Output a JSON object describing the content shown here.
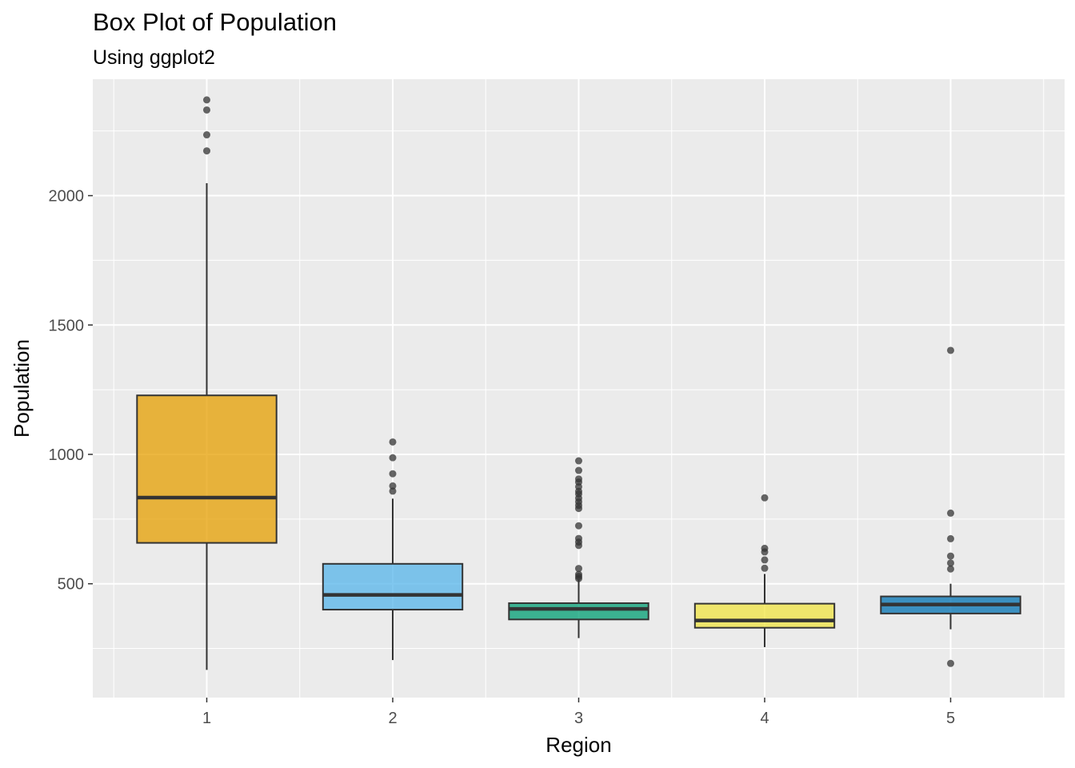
{
  "chart_data": {
    "type": "box",
    "title": "Box Plot of Population",
    "subtitle": "Using ggplot2",
    "xlabel": "Region",
    "ylabel": "Population",
    "ylim": [
      60,
      2450
    ],
    "y_ticks": [
      500,
      1000,
      1500,
      2000
    ],
    "grid": true,
    "legend": "none",
    "categories": [
      "1",
      "2",
      "3",
      "4",
      "5"
    ],
    "boxes": [
      {
        "category": "1",
        "q1": 658,
        "median": 833,
        "q3": 1228,
        "whisker_low": 167,
        "whisker_high": 2048,
        "color": "#E69F00",
        "outliers": [
          2173,
          2235,
          2331,
          2370
        ]
      },
      {
        "category": "2",
        "q1": 400,
        "median": 457,
        "q3": 577,
        "whisker_low": 205,
        "whisker_high": 829,
        "color": "#56B4E9",
        "outliers": [
          858,
          878,
          925,
          987,
          1048
        ]
      },
      {
        "category": "3",
        "q1": 362,
        "median": 403,
        "q3": 425,
        "whisker_low": 290,
        "whisker_high": 515,
        "color": "#009E73",
        "outliers": [
          520,
          528,
          536,
          559,
          648,
          661,
          675,
          724,
          791,
          803,
          817,
          831,
          847,
          857,
          875,
          893,
          905,
          938,
          975
        ]
      },
      {
        "category": "4",
        "q1": 330,
        "median": 358,
        "q3": 423,
        "whisker_low": 255,
        "whisker_high": 538,
        "color": "#F0E442",
        "outliers": [
          560,
          592,
          623,
          637,
          832
        ]
      },
      {
        "category": "5",
        "q1": 385,
        "median": 420,
        "q3": 451,
        "whisker_low": 324,
        "whisker_high": 500,
        "color": "#0072B2",
        "outliers": [
          192,
          557,
          580,
          607,
          674,
          773,
          1402
        ]
      }
    ]
  }
}
